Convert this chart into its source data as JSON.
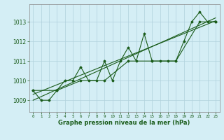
{
  "xlabel": "Graphe pression niveau de la mer (hPa)",
  "bg_color": "#d4eef5",
  "grid_color": "#b0d0dc",
  "line_color": "#1a5c1a",
  "marker_color": "#1a5c1a",
  "ylim": [
    1008.4,
    1013.9
  ],
  "xlim": [
    -0.5,
    23.5
  ],
  "yticks": [
    1009,
    1010,
    1011,
    1012,
    1013
  ],
  "xticks": [
    0,
    1,
    2,
    3,
    4,
    5,
    6,
    7,
    8,
    9,
    10,
    11,
    12,
    13,
    14,
    15,
    16,
    17,
    18,
    19,
    20,
    21,
    22,
    23
  ],
  "series1": [
    1009.5,
    1009.0,
    1009.0,
    1009.5,
    1010.0,
    1010.0,
    1010.7,
    1010.0,
    1010.0,
    1011.0,
    1010.0,
    1011.0,
    1011.7,
    1011.0,
    1012.4,
    1011.0,
    1011.0,
    1011.0,
    1011.0,
    1012.0,
    1013.0,
    1013.5,
    1013.0,
    1013.0
  ],
  "series2_x": [
    0,
    3,
    6,
    9,
    12,
    15,
    18,
    21,
    23
  ],
  "series2_y": [
    1009.5,
    1009.5,
    1010.0,
    1010.0,
    1011.0,
    1011.0,
    1011.0,
    1013.0,
    1013.0
  ],
  "trend_line": [
    [
      0,
      23
    ],
    [
      1009.0,
      1013.2
    ]
  ],
  "trend_line2": [
    [
      0,
      23
    ],
    [
      1009.3,
      1013.05
    ]
  ]
}
